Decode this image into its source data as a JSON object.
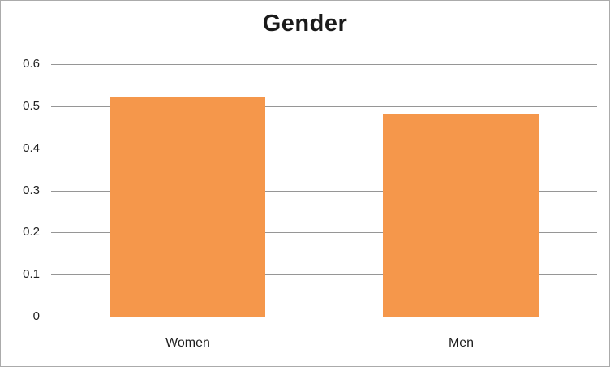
{
  "chart_data": {
    "type": "bar",
    "title": "Gender",
    "categories": [
      "Women",
      "Men"
    ],
    "values": [
      0.52,
      0.48
    ],
    "xlabel": "",
    "ylabel": "",
    "ylim": [
      0,
      0.6
    ],
    "ytick_step": 0.1,
    "yticks": [
      "0",
      "0.1",
      "0.2",
      "0.3",
      "0.4",
      "0.5",
      "0.6"
    ],
    "grid": true,
    "legend_position": "none",
    "bar_color": "#f5974b",
    "gridline_color": "#969696",
    "axis_line_color": "#8c8c8c",
    "text_color": "#1f1f1f",
    "frame_border_color": "#ababab",
    "background_color": "#ffffff"
  }
}
